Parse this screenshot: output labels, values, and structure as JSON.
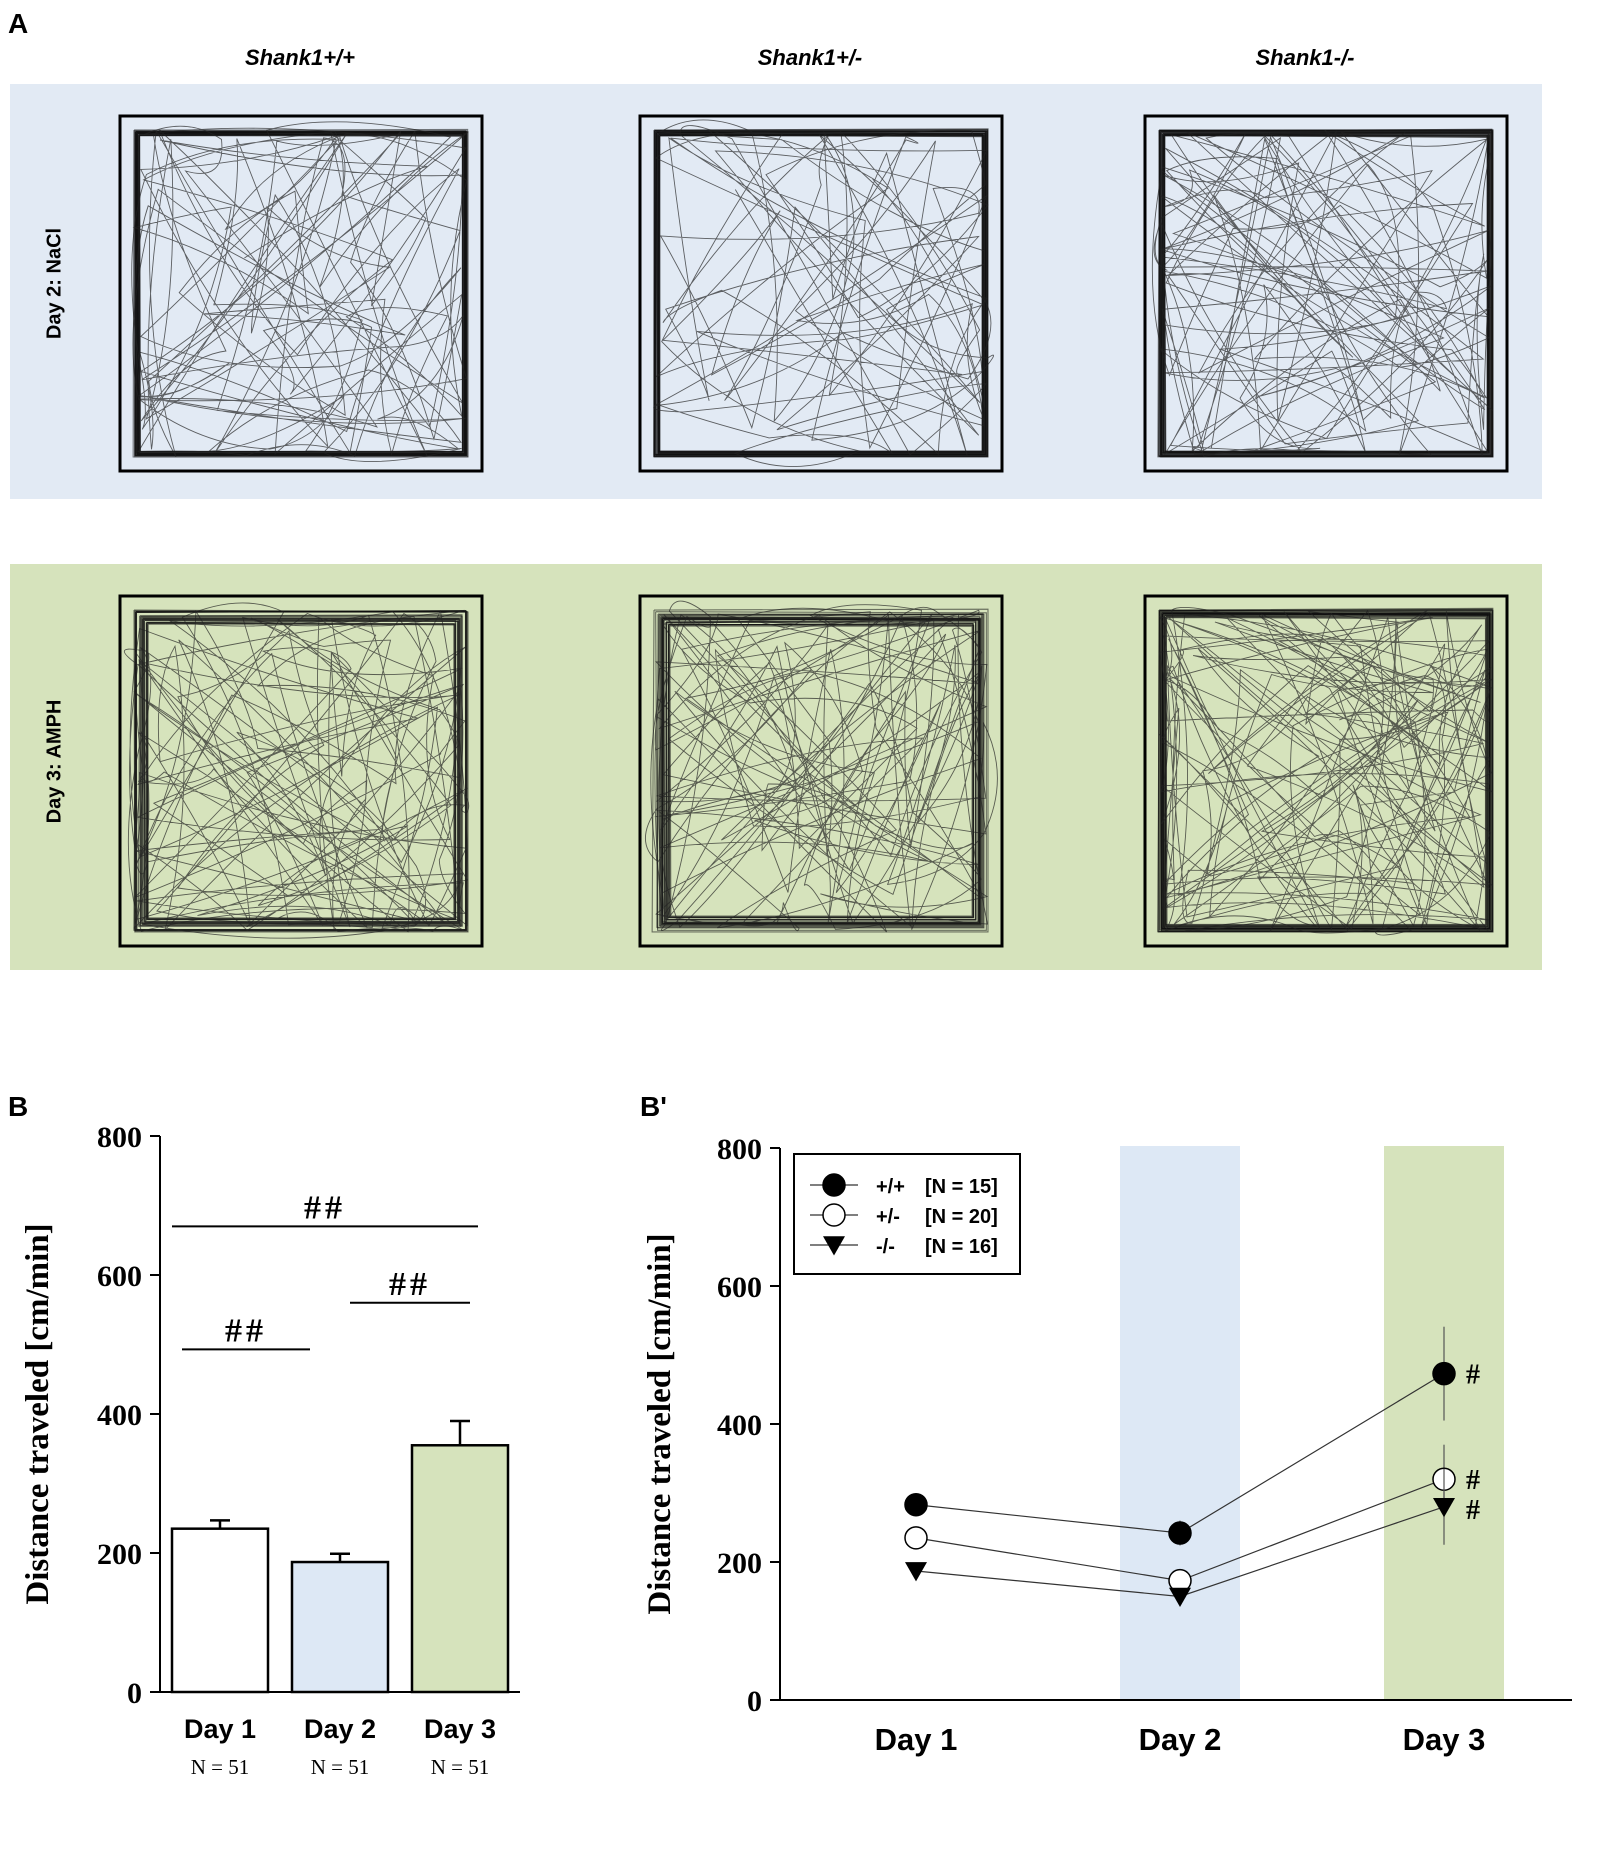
{
  "panel_a": {
    "letter": "A",
    "genotypes": [
      "Shank1+/+",
      "Shank1+/-",
      "Shank1-/-"
    ],
    "rows": [
      {
        "label": "Day 2: NaCl",
        "color": "#e2eaf4",
        "density": [
          0.45,
          0.25,
          0.5
        ]
      },
      {
        "label": "Day 3: AMPH",
        "color": "#d6e3bc",
        "density": [
          0.7,
          0.65,
          0.85
        ]
      }
    ]
  },
  "chart_data": [
    {
      "panel": "B",
      "type": "bar",
      "ylabel": "Distance traveled [cm/min]",
      "ylim": [
        0,
        800
      ],
      "yticks": [
        "0",
        "200",
        "400",
        "600",
        "800"
      ],
      "categories": [
        "Day 1",
        "Day 2",
        "Day 3"
      ],
      "n_labels": [
        "N = 51",
        "N = 51",
        "N = 51"
      ],
      "values": [
        235,
        187,
        355
      ],
      "errors": [
        12,
        12,
        35
      ],
      "bar_colors": [
        "#ffffff",
        "#dde8f5",
        "#d6e3bc"
      ],
      "significance": [
        {
          "label": "##",
          "from": 0,
          "to": 1,
          "y": 493
        },
        {
          "label": "##",
          "from": 1,
          "to": 2,
          "y": 560
        },
        {
          "label": "##",
          "from": 0,
          "to": 2,
          "y": 670
        }
      ]
    },
    {
      "panel": "B'",
      "type": "line",
      "ylabel": "Distance traveled [cm/min]",
      "ylim": [
        0,
        800
      ],
      "yticks": [
        "0",
        "200",
        "400",
        "600",
        "800"
      ],
      "categories": [
        "Day 1",
        "Day 2",
        "Day 3"
      ],
      "shaded_days": [
        {
          "category": "Day 2",
          "color": "#dde8f5"
        },
        {
          "category": "Day 3",
          "color": "#d6e3bc"
        }
      ],
      "series": [
        {
          "symbol": "+/+",
          "n": "[N = 15]",
          "marker": "filled-circle",
          "values": [
            283,
            242,
            473
          ],
          "errors": [
            0,
            18,
            68
          ],
          "marks": [
            "",
            "",
            "#"
          ]
        },
        {
          "symbol": "+/-",
          "n": "[N = 20]",
          "marker": "open-circle",
          "values": [
            235,
            173,
            320
          ],
          "errors": [
            0,
            0,
            50
          ],
          "marks": [
            "",
            "",
            "#"
          ]
        },
        {
          "symbol": "-/-",
          "n": "[N = 16]",
          "marker": "filled-triangle-down",
          "values": [
            187,
            150,
            280
          ],
          "errors": [
            0,
            0,
            55
          ],
          "marks": [
            "",
            "",
            "#"
          ]
        }
      ]
    }
  ]
}
